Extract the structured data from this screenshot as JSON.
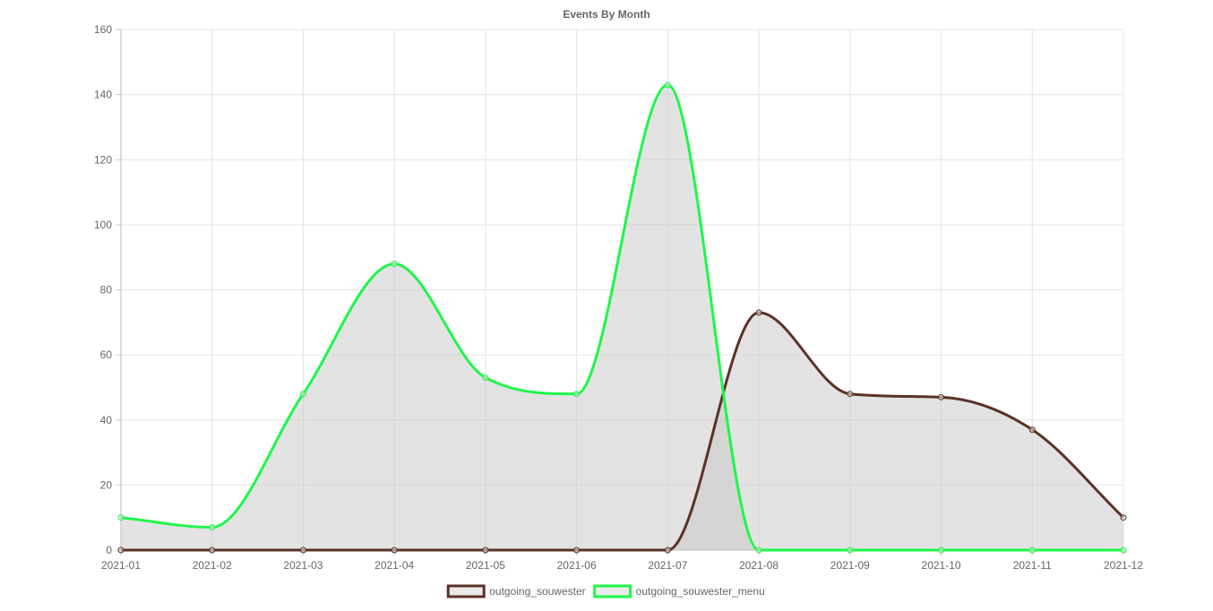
{
  "chart_data": {
    "type": "line",
    "title": "Events By Month",
    "categories": [
      "2021-01",
      "2021-02",
      "2021-03",
      "2021-04",
      "2021-05",
      "2021-06",
      "2021-07",
      "2021-08",
      "2021-09",
      "2021-10",
      "2021-11",
      "2021-12"
    ],
    "ylim": [
      0,
      160
    ],
    "yticks": [
      0,
      20,
      40,
      60,
      80,
      100,
      120,
      140,
      160
    ],
    "grid": true,
    "legend_position": "bottom",
    "series": [
      {
        "name": "outgoing_souwester",
        "color": "#5a3227",
        "fill": "rgba(200,200,200,0.5)",
        "values": [
          0,
          0,
          0,
          0,
          0,
          0,
          0,
          73,
          48,
          47,
          37,
          10
        ]
      },
      {
        "name": "outgoing_souwester_menu",
        "color": "#1ef74a",
        "fill": "rgba(200,200,200,0.5)",
        "values": [
          10,
          7,
          48,
          88,
          53,
          48,
          143,
          0,
          0,
          0,
          0,
          0
        ]
      }
    ]
  }
}
